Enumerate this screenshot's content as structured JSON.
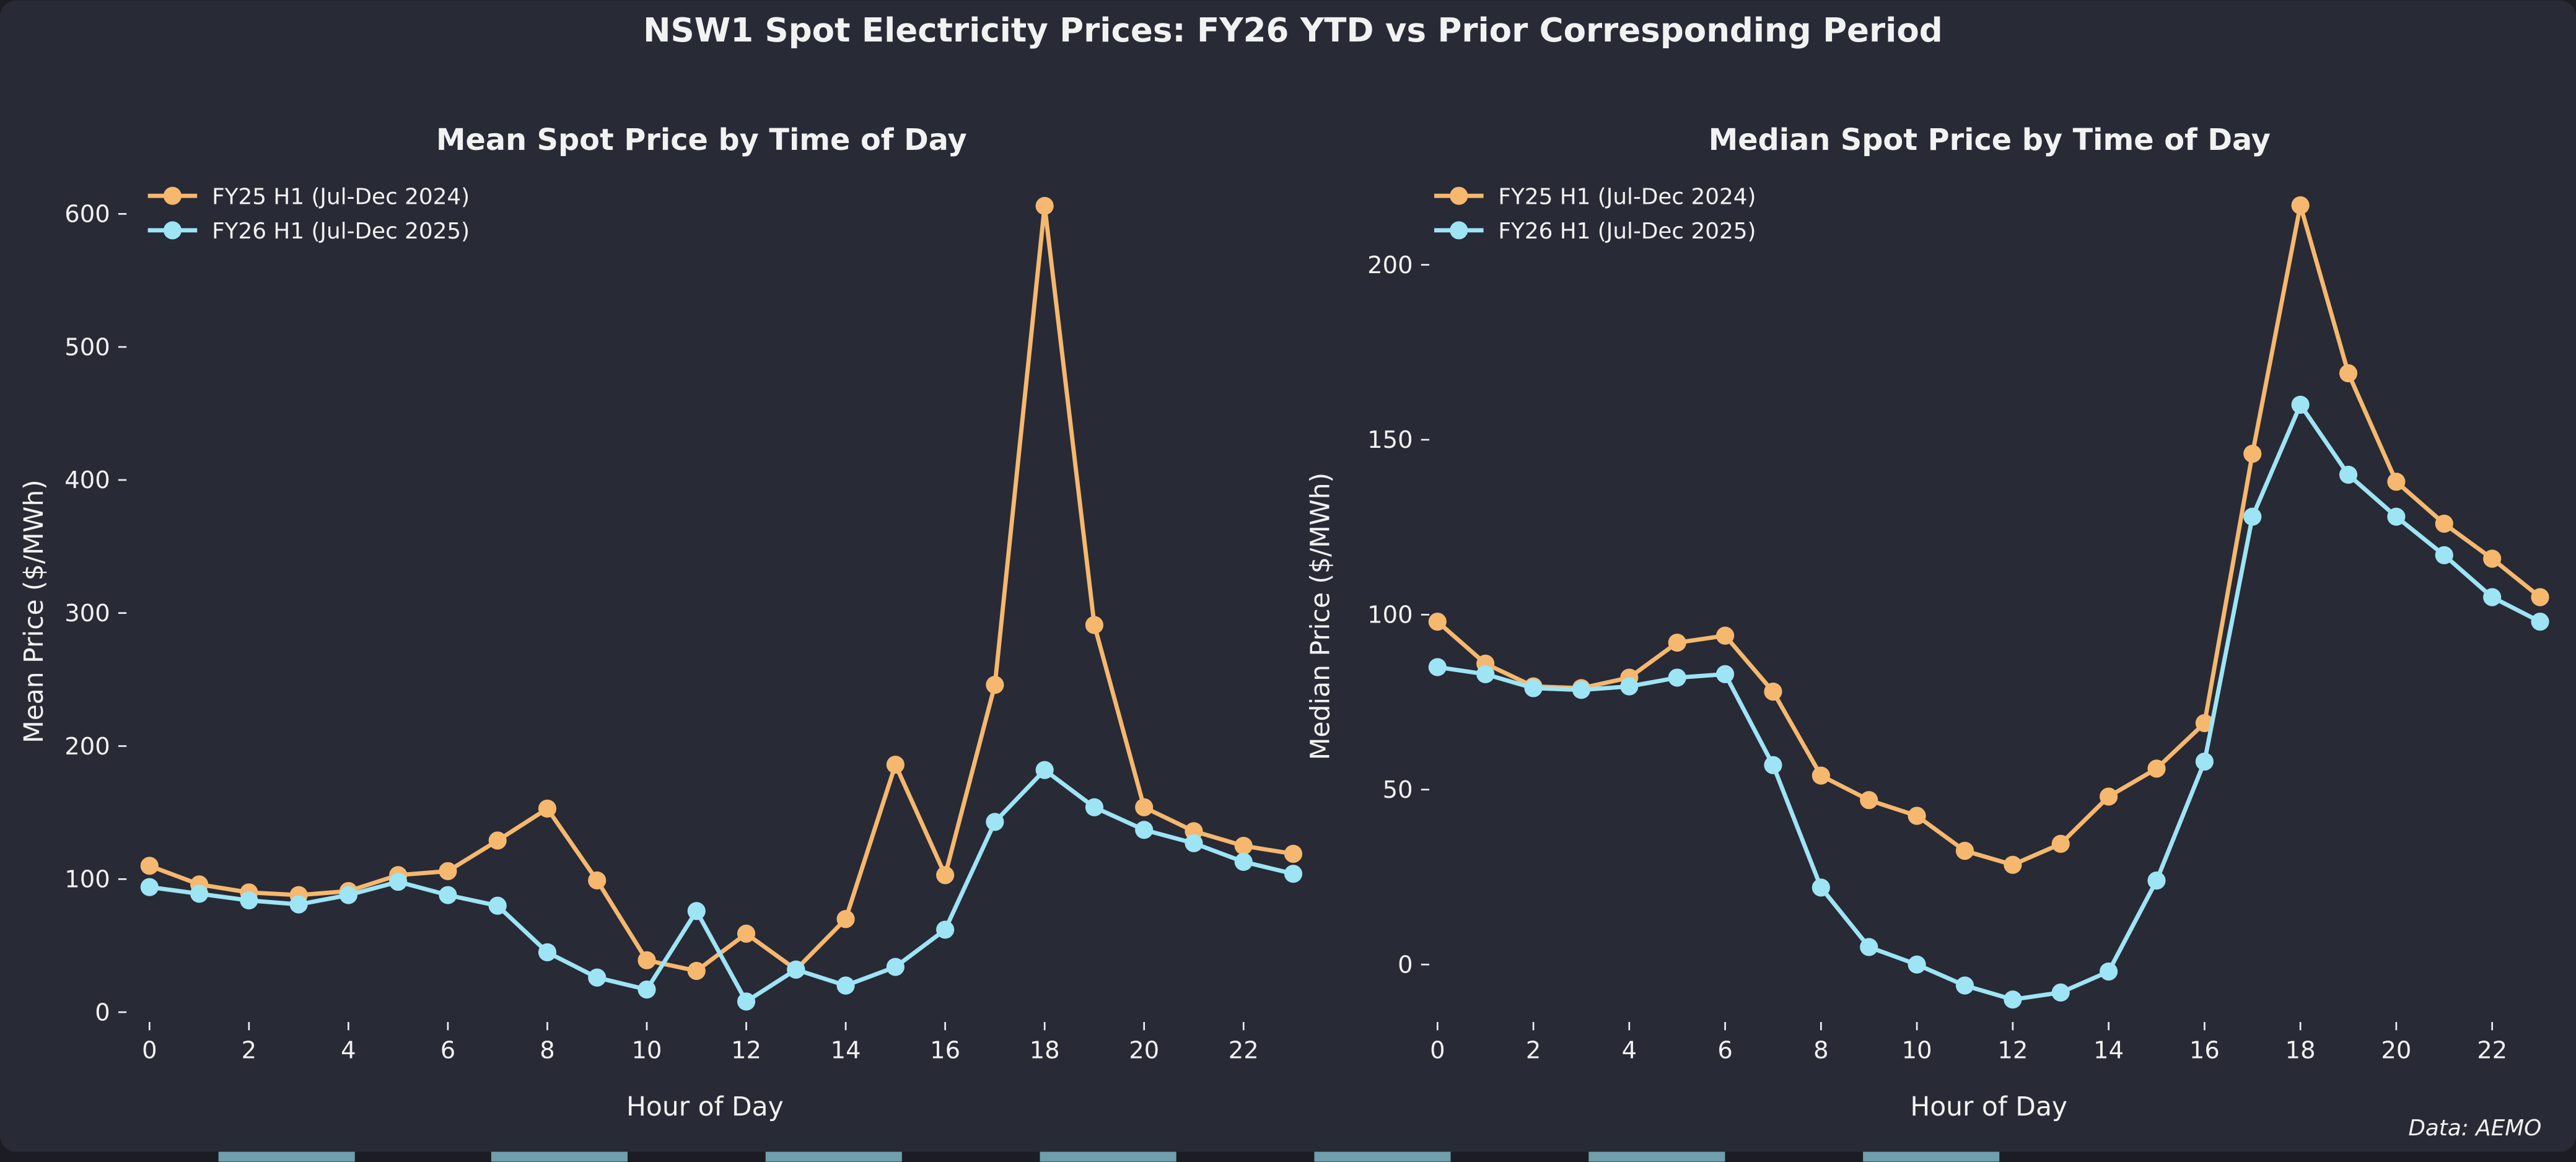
{
  "figure_title": "NSW1 Spot Electricity Prices: FY26 YTD vs Prior Corresponding Period",
  "source_note": "Data: AEMO",
  "colors": {
    "background": "#282a36",
    "fy25": "#f5b86e",
    "fy26": "#9de4f5",
    "text": "#f2f2f2",
    "taskbar_tab": "#6f9fac"
  },
  "chart_data": [
    {
      "type": "line",
      "title": "Mean Spot Price by Time of Day",
      "xlabel": "Hour of Day",
      "ylabel": "Mean Price ($/MWh)",
      "x": [
        0,
        1,
        2,
        3,
        4,
        5,
        6,
        7,
        8,
        9,
        10,
        11,
        12,
        13,
        14,
        15,
        16,
        17,
        18,
        19,
        20,
        21,
        22,
        23
      ],
      "xticks": [
        "0",
        "2",
        "4",
        "6",
        "8",
        "10",
        "12",
        "14",
        "16",
        "18",
        "20",
        "22"
      ],
      "yticks": [
        "0",
        "100",
        "200",
        "300",
        "400",
        "500",
        "600"
      ],
      "ylim": [
        -20,
        640
      ],
      "grid": false,
      "legend": "top-left",
      "series": [
        {
          "name": "FY25 H1 (Jul-Dec 2024)",
          "color": "#f5b86e",
          "values": [
            110,
            96,
            90,
            88,
            91,
            103,
            106,
            129,
            153,
            99,
            39,
            31,
            59,
            32,
            70,
            186,
            103,
            246,
            606,
            291,
            154,
            136,
            125,
            119
          ]
        },
        {
          "name": "FY26 H1 (Jul-Dec 2025)",
          "color": "#9de4f5",
          "values": [
            94,
            89,
            84,
            81,
            88,
            98,
            88,
            80,
            45,
            26,
            17,
            76,
            8,
            32,
            20,
            34,
            62,
            143,
            182,
            154,
            137,
            127,
            113,
            104
          ]
        }
      ]
    },
    {
      "type": "line",
      "title": "Median Spot Price by Time of Day",
      "xlabel": "Hour of Day",
      "ylabel": "Median Price ($/MWh)",
      "x": [
        0,
        1,
        2,
        3,
        4,
        5,
        6,
        7,
        8,
        9,
        10,
        11,
        12,
        13,
        14,
        15,
        16,
        17,
        18,
        19,
        20,
        21,
        22,
        23
      ],
      "xticks": [
        "0",
        "2",
        "4",
        "6",
        "8",
        "10",
        "12",
        "14",
        "16",
        "18",
        "20",
        "22"
      ],
      "yticks": [
        "0",
        "50",
        "100",
        "150",
        "200"
      ],
      "ylim": [
        -20,
        225
      ],
      "grid": false,
      "legend": "top-left",
      "series": [
        {
          "name": "FY25 H1 (Jul-Dec 2024)",
          "color": "#f5b86e",
          "values": [
            98,
            86,
            79.5,
            79,
            82,
            92,
            94,
            78,
            54,
            47,
            42.5,
            32.5,
            28.5,
            34.5,
            48,
            56,
            69,
            146,
            217,
            169,
            138,
            126,
            116,
            105
          ]
        },
        {
          "name": "FY26 H1 (Jul-Dec 2025)",
          "color": "#9de4f5",
          "values": [
            85,
            83,
            79,
            78.5,
            79.5,
            82,
            83,
            57,
            22,
            5,
            0,
            -6,
            -10,
            -8,
            -2,
            24,
            58,
            128,
            160,
            140,
            128,
            117,
            105,
            98
          ]
        }
      ]
    }
  ]
}
